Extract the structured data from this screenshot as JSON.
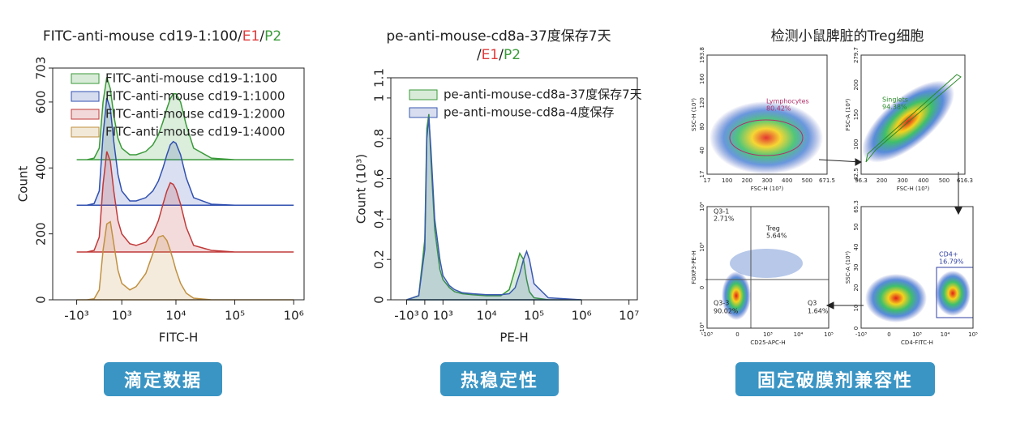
{
  "chart_data": [
    {
      "type": "line",
      "title": [
        "FITC-anti-mouse cd19-1:100/",
        "E1",
        "/",
        "P2"
      ],
      "title_colors": [
        "#222222",
        "#e03a3a",
        "#222222",
        "#3a9a3a"
      ],
      "xlabel": "FITC-H",
      "ylabel": "Count",
      "xscale": "asinh",
      "fill": true,
      "legend": "upper left",
      "x": [
        -1000,
        -500,
        -200,
        0,
        150,
        300,
        450,
        600,
        800,
        1000,
        1500,
        2000,
        3000,
        4000,
        5000,
        6000,
        7000,
        8000,
        9000,
        10000,
        12000,
        15000,
        20000,
        40000,
        100000,
        1000000
      ],
      "series": [
        {
          "name": "FITC-anti-mouse cd19-1:100",
          "color": "#3a9a3a",
          "values": [
            425,
            425,
            430,
            460,
            600,
            675,
            640,
            560,
            490,
            460,
            440,
            440,
            450,
            470,
            500,
            540,
            580,
            610,
            625,
            625,
            600,
            530,
            460,
            430,
            425,
            425
          ]
        },
        {
          "name": "FITC-anti-mouse cd19-1:1000",
          "color": "#3050b0",
          "values": [
            287,
            287,
            292,
            330,
            500,
            612,
            580,
            480,
            380,
            330,
            300,
            300,
            310,
            330,
            360,
            400,
            440,
            470,
            480,
            475,
            440,
            370,
            310,
            290,
            287,
            287
          ]
        },
        {
          "name": "FITC-anti-mouse cd19-1:2000",
          "color": "#c03a3a",
          "values": [
            145,
            145,
            150,
            190,
            350,
            450,
            420,
            330,
            240,
            200,
            170,
            165,
            175,
            200,
            240,
            290,
            330,
            355,
            350,
            335,
            290,
            220,
            165,
            150,
            145,
            145
          ]
        },
        {
          "name": "FITC-anti-mouse cd19-1:4000",
          "color": "#c09040",
          "values": [
            0,
            0,
            3,
            30,
            150,
            230,
            237,
            170,
            90,
            50,
            30,
            40,
            80,
            140,
            190,
            195,
            180,
            150,
            120,
            90,
            50,
            20,
            5,
            0,
            0,
            0
          ]
        }
      ],
      "xlim": [
        -3000,
        1500000
      ],
      "xticks": [
        {
          "value": -1000,
          "label": "-10³"
        },
        {
          "value": 1000,
          "label": "10³"
        },
        {
          "value": 10000,
          "label": "10⁴"
        },
        {
          "value": 100000,
          "label": "10⁵"
        },
        {
          "value": 1000000,
          "label": "10⁶"
        }
      ],
      "ylim": [
        0,
        703
      ],
      "yticks": [
        0,
        200,
        400,
        600,
        703
      ]
    },
    {
      "type": "line",
      "title": [
        "pe-anti-mouse-cd8a-37度保存7天",
        "/",
        "E1",
        "/",
        "P2"
      ],
      "title_colors": [
        "#222222",
        "#222222",
        "#e03a3a",
        "#222222",
        "#3a9a3a"
      ],
      "xlabel": "PE-H",
      "ylabel": "Count (10³)",
      "xscale": "asinh",
      "fill": true,
      "legend": "upper center",
      "x": [
        -1000,
        -300,
        0,
        100,
        200,
        300,
        500,
        800,
        1000,
        1500,
        2000,
        3000,
        5000,
        10000,
        20000,
        30000,
        40000,
        50000,
        60000,
        70000,
        80000,
        100000,
        200000,
        1000000
      ],
      "series": [
        {
          "name": "pe-anti-mouse-cd8a-37度保存7天",
          "color": "#3a9a3a",
          "values": [
            0,
            0.02,
            0.3,
            0.85,
            0.92,
            0.7,
            0.35,
            0.15,
            0.1,
            0.06,
            0.04,
            0.03,
            0.025,
            0.02,
            0.02,
            0.05,
            0.15,
            0.23,
            0.2,
            0.1,
            0.04,
            0.01,
            0,
            0
          ]
        },
        {
          "name": "pe-anti-mouse-cd8a-4度保存",
          "color": "#3a5ab0",
          "values": [
            0,
            0.02,
            0.25,
            0.8,
            0.9,
            0.75,
            0.4,
            0.2,
            0.12,
            0.07,
            0.05,
            0.035,
            0.03,
            0.025,
            0.025,
            0.03,
            0.06,
            0.13,
            0.2,
            0.24,
            0.2,
            0.08,
            0.01,
            0
          ]
        }
      ],
      "xlim": [
        -2500,
        15000000
      ],
      "xticks": [
        {
          "value": -1000,
          "label": "-10³"
        },
        0,
        {
          "value": 1000,
          "label": "10³"
        },
        {
          "value": 10000,
          "label": "10⁴"
        },
        {
          "value": 100000,
          "label": "10⁵"
        },
        {
          "value": 1000000,
          "label": "10⁶"
        },
        {
          "value": 10000000,
          "label": "10⁷"
        }
      ],
      "ylim": [
        0,
        1.1
      ],
      "yticks": [
        0,
        0.2,
        0.4,
        0.6,
        0.8,
        1,
        1.1
      ]
    }
  ],
  "panel3": {
    "title": "检测小鼠脾脏的Treg细胞",
    "plots": [
      {
        "xlabel": "FSC-H (10³)",
        "ylabel": "SSC-H (10³)",
        "xticks": [
          "17",
          "100",
          "200",
          "300",
          "400",
          "500",
          "671.5"
        ],
        "yticks": [
          "17",
          "40",
          "80",
          "120",
          "160",
          "193.8"
        ],
        "gates": [
          "Lymphocytes",
          "80.42%"
        ]
      },
      {
        "xlabel": "FSC-H (10³)",
        "ylabel": "FSC-A (10³)",
        "xticks": [
          "96.3",
          "200",
          "300",
          "400",
          "500",
          "616.3"
        ],
        "yticks": [
          "42.5",
          "100",
          "150",
          "200",
          "279.7"
        ],
        "gates": [
          "Singlets",
          "94.38%"
        ]
      },
      {
        "xlabel": "CD25-APC-H",
        "ylabel": "FOXP3-PE-H",
        "xticks": [
          "-10³",
          "0",
          "10³",
          "10⁴",
          "10⁵"
        ],
        "yticks": [
          "-10³",
          "0",
          "10³",
          "10⁴"
        ],
        "gates": [
          "Q3-1",
          "2.71%",
          "Treg",
          "5.64%",
          "Q3-3",
          "90.02%",
          "Q3",
          "1.64%"
        ]
      },
      {
        "xlabel": "CD4-FITC-H",
        "ylabel": "SSC-A (10³)",
        "xticks": [
          "-10³",
          "0",
          "10³",
          "10⁴",
          "10⁵"
        ],
        "yticks": [
          "0",
          "10",
          "20",
          "30",
          "40",
          "50",
          "65.3"
        ],
        "gates": [
          "CD4+",
          "16.79%"
        ]
      }
    ]
  },
  "buttons": [
    "滴定数据",
    "热稳定性",
    "固定破膜剂兼容性"
  ]
}
